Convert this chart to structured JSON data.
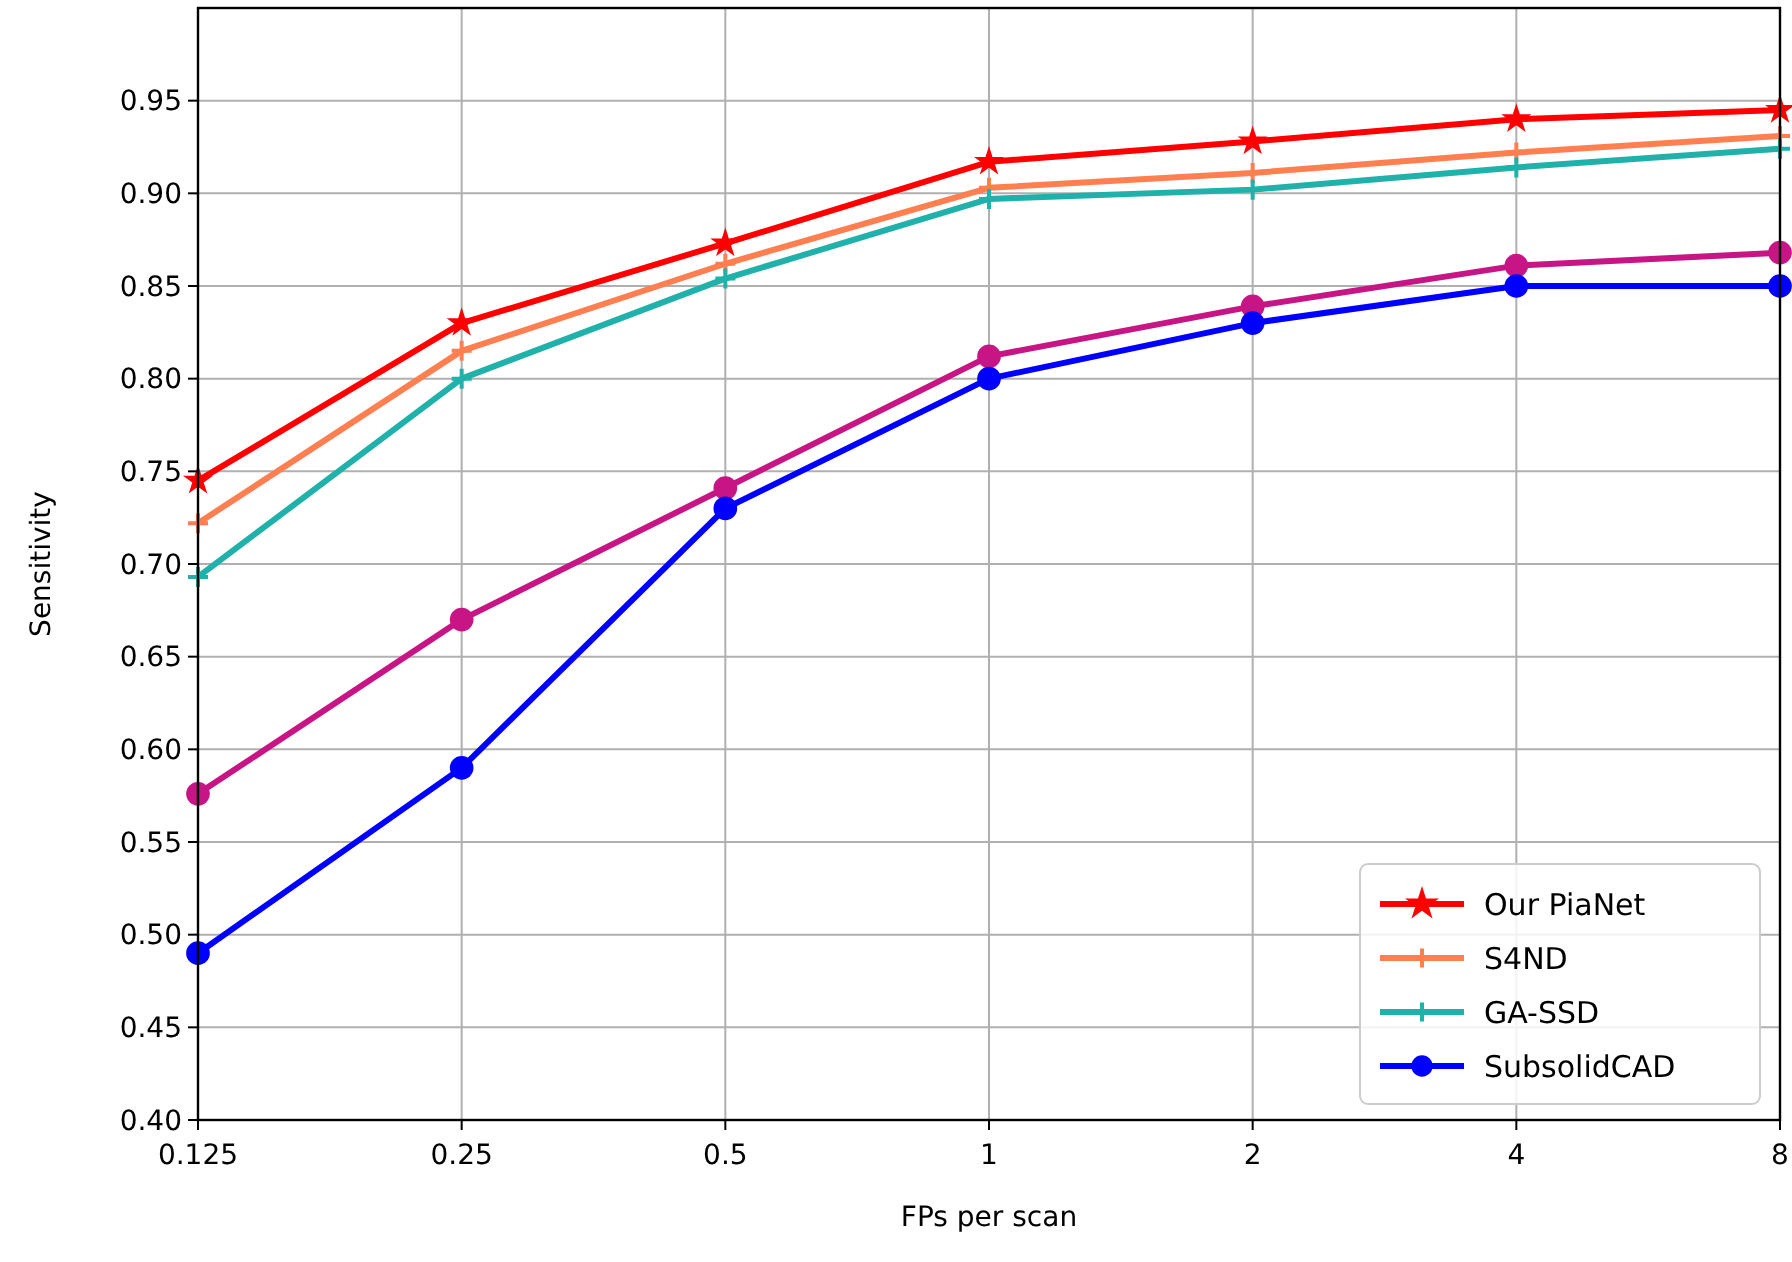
{
  "chart_data": {
    "type": "line",
    "xlabel": "FPs per scan",
    "ylabel": "Sensitivity",
    "categories": [
      "0.125",
      "0.25",
      "0.5",
      "1",
      "2",
      "4",
      "8"
    ],
    "ylim": [
      0.4,
      1.0
    ],
    "yticks": [
      {
        "value": 0.4,
        "label": "0.40"
      },
      {
        "value": 0.45,
        "label": "0.45"
      },
      {
        "value": 0.5,
        "label": "0.50"
      },
      {
        "value": 0.55,
        "label": "0.55"
      },
      {
        "value": 0.6,
        "label": "0.60"
      },
      {
        "value": 0.65,
        "label": "0.65"
      },
      {
        "value": 0.7,
        "label": "0.70"
      },
      {
        "value": 0.75,
        "label": "0.75"
      },
      {
        "value": 0.8,
        "label": "0.80"
      },
      {
        "value": 0.85,
        "label": "0.85"
      },
      {
        "value": 0.9,
        "label": "0.90"
      },
      {
        "value": 0.95,
        "label": "0.95"
      }
    ],
    "grid": true,
    "legend": "bottom right",
    "series": [
      {
        "name": "Our PiaNet",
        "color": "#ff0000",
        "marker": "star",
        "values": [
          0.745,
          0.83,
          0.873,
          0.917,
          0.928,
          0.94,
          0.945
        ]
      },
      {
        "name": "S4ND",
        "color": "#ff7f50",
        "marker": "cross",
        "values": [
          0.722,
          0.815,
          0.862,
          0.903,
          0.911,
          0.922,
          0.931
        ]
      },
      {
        "name": "GA-SSD",
        "color": "#20b2aa",
        "marker": "cross",
        "values": [
          0.693,
          0.8,
          0.854,
          0.897,
          0.902,
          0.914,
          0.924
        ]
      },
      {
        "color": "#c71585",
        "marker": "circle",
        "values": [
          0.576,
          0.67,
          0.741,
          0.812,
          0.839,
          0.861,
          0.868
        ]
      },
      {
        "name": "SubsolidCAD",
        "color": "#0000ff",
        "marker": "circle",
        "values": [
          0.49,
          0.59,
          0.73,
          0.8,
          0.83,
          0.85,
          0.85
        ]
      }
    ]
  }
}
